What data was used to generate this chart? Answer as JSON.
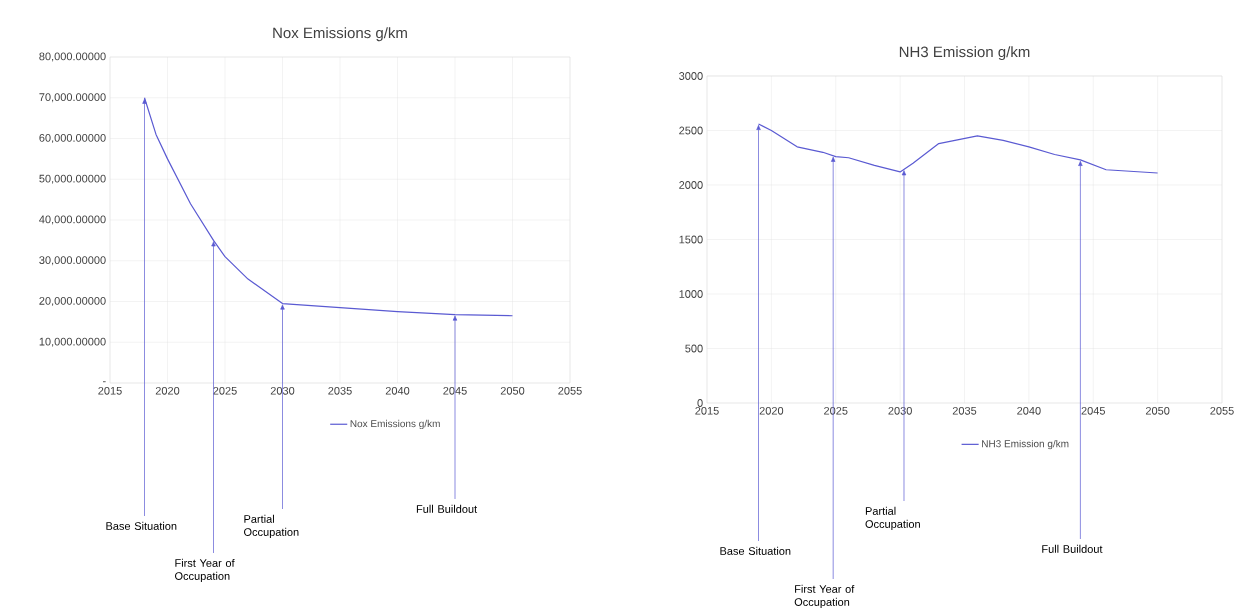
{
  "chart_data": [
    {
      "type": "line",
      "title": "Nox Emissions g/km",
      "series": [
        {
          "name": "Nox Emissions g/km",
          "color": "#5a5ad2",
          "x": [
            2018,
            2019,
            2020,
            2022,
            2024,
            2025,
            2027,
            2030,
            2035,
            2040,
            2045,
            2050
          ],
          "values": [
            70000,
            61000,
            55000,
            44000,
            35000,
            31000,
            25500,
            19500,
            18500,
            17500,
            16800,
            16500
          ]
        }
      ],
      "xlim": [
        2015,
        2055
      ],
      "xticks": [
        2015,
        2020,
        2025,
        2030,
        2035,
        2040,
        2045,
        2050,
        2055
      ],
      "ylim": [
        0,
        80000
      ],
      "yticks": [
        {
          "value": 0,
          "label": "-"
        },
        {
          "value": 10000,
          "label": "10,000.00000"
        },
        {
          "value": 20000,
          "label": "20,000.00000"
        },
        {
          "value": 30000,
          "label": "30,000.00000"
        },
        {
          "value": 40000,
          "label": "40,000.00000"
        },
        {
          "value": 50000,
          "label": "50,000.00000"
        },
        {
          "value": 60000,
          "label": "60,000.00000"
        },
        {
          "value": 70000,
          "label": "70,000.00000"
        },
        {
          "value": 80000,
          "label": "80,000.00000"
        }
      ],
      "annotations": [
        {
          "text": "Base Situation",
          "x": 2018,
          "y": 70000
        },
        {
          "text": "First Year of Occupation",
          "x": 2024,
          "y": 35000
        },
        {
          "text": "Partial Occupation",
          "x": 2030,
          "y": 19500
        },
        {
          "text": "Full Buildout",
          "x": 2045,
          "y": 16800
        }
      ],
      "grid": true,
      "legend": "bottom",
      "marker": "none",
      "line_style": "solid"
    },
    {
      "type": "line",
      "title": "NH3 Emission g/km",
      "series": [
        {
          "name": "NH3 Emission g/km",
          "color": "#5a5ad2",
          "x": [
            2019,
            2020,
            2022,
            2024,
            2025,
            2026,
            2028,
            2030,
            2031,
            2033,
            2036,
            2038,
            2040,
            2042,
            2044,
            2046,
            2050
          ],
          "values": [
            2560,
            2500,
            2350,
            2300,
            2260,
            2250,
            2180,
            2120,
            2200,
            2380,
            2450,
            2410,
            2350,
            2280,
            2230,
            2140,
            2110
          ]
        }
      ],
      "xlim": [
        2015,
        2055
      ],
      "xticks": [
        2015,
        2020,
        2025,
        2030,
        2035,
        2040,
        2045,
        2050,
        2055
      ],
      "ylim": [
        0,
        3000
      ],
      "yticks": [
        0,
        500,
        1000,
        1500,
        2000,
        2500,
        3000
      ],
      "annotations": [
        {
          "text": "Base Situation",
          "x": 2019,
          "y": 2560
        },
        {
          "text": "First Year of Occupation",
          "x": 2024.8,
          "y": 2268
        },
        {
          "text": "Partial Occupation",
          "x": 2030.3,
          "y": 2144
        },
        {
          "text": "Full Buildout",
          "x": 2044,
          "y": 2230
        }
      ],
      "grid": true,
      "legend": "bottom",
      "marker": "none",
      "line_style": "solid"
    }
  ]
}
